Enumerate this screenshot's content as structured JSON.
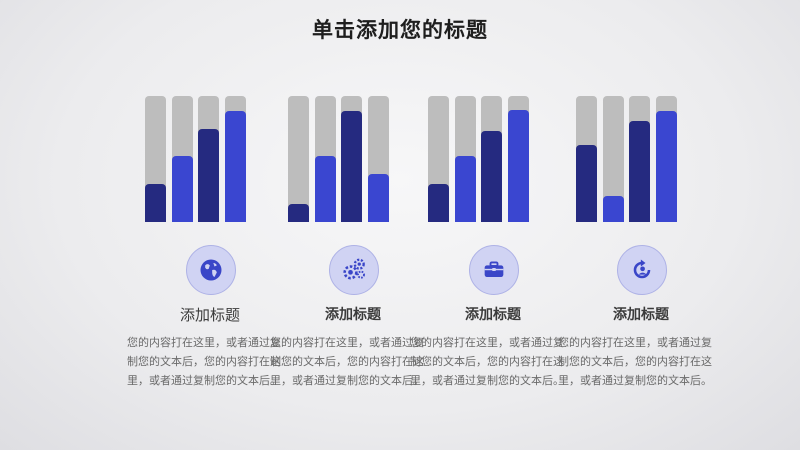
{
  "title": "单击添加您的标题",
  "colors": {
    "track": "#bdbdbd",
    "dark": "#252a80",
    "bright": "#3a46d0",
    "icon_bg": "#d0d3f3",
    "icon_fg": "#3a46c8"
  },
  "chart_data": [
    {
      "type": "bar",
      "values": [
        30,
        52,
        74,
        88
      ],
      "ylim": [
        0,
        100
      ]
    },
    {
      "type": "bar",
      "values": [
        14,
        52,
        88,
        38
      ],
      "ylim": [
        0,
        100
      ]
    },
    {
      "type": "bar",
      "values": [
        30,
        52,
        72,
        89
      ],
      "ylim": [
        0,
        100
      ]
    },
    {
      "type": "bar",
      "values": [
        61,
        21,
        80,
        88
      ],
      "ylim": [
        0,
        100
      ]
    }
  ],
  "groups": [
    {
      "icon": "globe-icon",
      "heading": "添加标题",
      "text": "您的内容打在这里，或者通过复制您的文本后，您的内容打在这里，或者通过复制您的文本后。"
    },
    {
      "icon": "gears-icon",
      "heading": "添加标题",
      "text": "您的内容打在这里，或者通过复制您的文本后，您的内容打在这里，或者通过复制您的文本后。"
    },
    {
      "icon": "briefcase-icon",
      "heading": "添加标题",
      "text": "您的内容打在这里，或者通过复制您的文本后，您的内容打在这里，或者通过复制您的文本后。"
    },
    {
      "icon": "refresh-user-icon",
      "heading": "添加标题",
      "text": "您的内容打在这里，或者通过复制您的文本后，您的内容打在这里，或者通过复制您的文本后。"
    }
  ]
}
